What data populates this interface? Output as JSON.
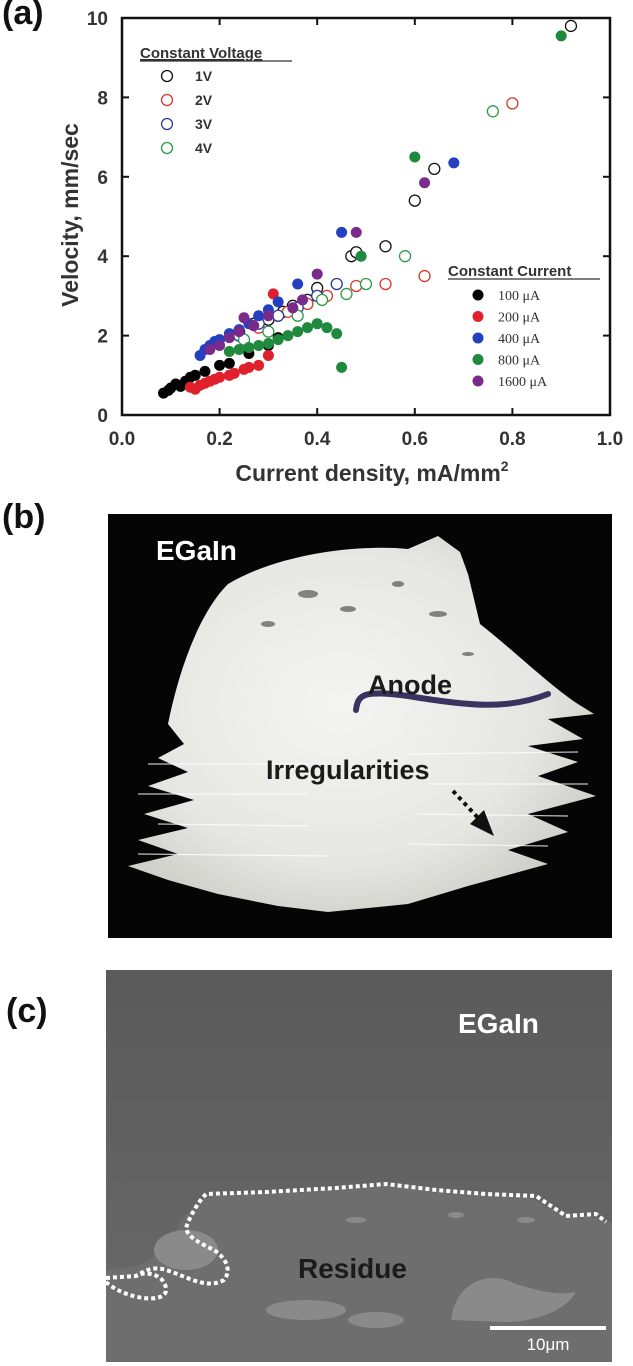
{
  "panels": {
    "a_label": "(a)",
    "b_label": "(b)",
    "c_label": "(c)"
  },
  "chart_data": {
    "type": "scatter",
    "xlabel": "Current density, mA/mm",
    "xlabel_sup": "2",
    "ylabel": "Velocity, mm/sec",
    "xlim": [
      0,
      1.0
    ],
    "ylim": [
      0,
      10
    ],
    "xticks": [
      "0.0",
      "0.2",
      "0.4",
      "0.6",
      "0.8",
      "1.0"
    ],
    "yticks": [
      "0",
      "2",
      "4",
      "6",
      "8",
      "10"
    ],
    "legend_hollow_title": "Constant Voltage",
    "legend_filled_title": "Constant Current",
    "hollow_series": [
      {
        "name": "1V",
        "color": "#111111",
        "points": [
          [
            0.24,
            2.1
          ],
          [
            0.27,
            2.3
          ],
          [
            0.3,
            2.4
          ],
          [
            0.33,
            2.6
          ],
          [
            0.35,
            2.75
          ],
          [
            0.38,
            2.9
          ],
          [
            0.4,
            3.2
          ],
          [
            0.47,
            4.0
          ],
          [
            0.48,
            4.1
          ],
          [
            0.54,
            4.25
          ],
          [
            0.6,
            5.4
          ],
          [
            0.64,
            6.2
          ],
          [
            0.92,
            9.8
          ]
        ]
      },
      {
        "name": "2V",
        "color": "#d43a2a",
        "points": [
          [
            0.28,
            2.2
          ],
          [
            0.34,
            2.6
          ],
          [
            0.38,
            2.8
          ],
          [
            0.42,
            3.0
          ],
          [
            0.48,
            3.25
          ],
          [
            0.54,
            3.3
          ],
          [
            0.62,
            3.5
          ],
          [
            0.8,
            7.85
          ]
        ]
      },
      {
        "name": "3V",
        "color": "#2a3a9a",
        "points": [
          [
            0.24,
            2.0
          ],
          [
            0.28,
            2.3
          ],
          [
            0.32,
            2.5
          ],
          [
            0.36,
            2.7
          ],
          [
            0.4,
            3.0
          ],
          [
            0.44,
            3.3
          ]
        ]
      },
      {
        "name": "4V",
        "color": "#2e9a48",
        "points": [
          [
            0.25,
            1.9
          ],
          [
            0.3,
            2.1
          ],
          [
            0.36,
            2.5
          ],
          [
            0.41,
            2.9
          ],
          [
            0.46,
            3.05
          ],
          [
            0.5,
            3.3
          ],
          [
            0.58,
            4.0
          ],
          [
            0.76,
            7.65
          ]
        ]
      }
    ],
    "filled_series": [
      {
        "name": "100 μA",
        "color": "#000000",
        "points": [
          [
            0.085,
            0.55
          ],
          [
            0.095,
            0.62
          ],
          [
            0.1,
            0.68
          ],
          [
            0.11,
            0.78
          ],
          [
            0.12,
            0.72
          ],
          [
            0.13,
            0.85
          ],
          [
            0.14,
            0.95
          ],
          [
            0.15,
            1.0
          ],
          [
            0.17,
            1.1
          ],
          [
            0.2,
            1.25
          ],
          [
            0.22,
            1.3
          ],
          [
            0.26,
            1.55
          ],
          [
            0.3,
            1.75
          ],
          [
            0.32,
            1.95
          ]
        ]
      },
      {
        "name": "200 μA",
        "color": "#e0202a",
        "points": [
          [
            0.14,
            0.7
          ],
          [
            0.15,
            0.65
          ],
          [
            0.16,
            0.75
          ],
          [
            0.17,
            0.8
          ],
          [
            0.18,
            0.85
          ],
          [
            0.19,
            0.9
          ],
          [
            0.2,
            0.95
          ],
          [
            0.22,
            1.0
          ],
          [
            0.23,
            1.05
          ],
          [
            0.25,
            1.15
          ],
          [
            0.26,
            1.2
          ],
          [
            0.28,
            1.25
          ],
          [
            0.3,
            1.5
          ],
          [
            0.31,
            3.05
          ]
        ]
      },
      {
        "name": "400 μA",
        "color": "#2440c0",
        "points": [
          [
            0.16,
            1.5
          ],
          [
            0.17,
            1.65
          ],
          [
            0.18,
            1.75
          ],
          [
            0.19,
            1.85
          ],
          [
            0.2,
            1.9
          ],
          [
            0.22,
            2.05
          ],
          [
            0.24,
            2.15
          ],
          [
            0.26,
            2.3
          ],
          [
            0.28,
            2.5
          ],
          [
            0.3,
            2.65
          ],
          [
            0.32,
            2.85
          ],
          [
            0.36,
            3.3
          ],
          [
            0.45,
            4.6
          ],
          [
            0.68,
            6.35
          ]
        ]
      },
      {
        "name": "800 μA",
        "color": "#1f8a3e",
        "points": [
          [
            0.22,
            1.6
          ],
          [
            0.24,
            1.65
          ],
          [
            0.26,
            1.7
          ],
          [
            0.28,
            1.75
          ],
          [
            0.3,
            1.8
          ],
          [
            0.32,
            1.9
          ],
          [
            0.34,
            2.0
          ],
          [
            0.36,
            2.1
          ],
          [
            0.38,
            2.2
          ],
          [
            0.4,
            2.3
          ],
          [
            0.42,
            2.2
          ],
          [
            0.44,
            2.05
          ],
          [
            0.45,
            1.2
          ],
          [
            0.49,
            4.0
          ],
          [
            0.6,
            6.5
          ],
          [
            0.9,
            9.55
          ]
        ]
      },
      {
        "name": "1600 μA",
        "color": "#7a2a8a",
        "points": [
          [
            0.18,
            1.65
          ],
          [
            0.2,
            1.75
          ],
          [
            0.22,
            1.95
          ],
          [
            0.24,
            2.1
          ],
          [
            0.25,
            2.45
          ],
          [
            0.27,
            2.25
          ],
          [
            0.3,
            2.5
          ],
          [
            0.35,
            2.7
          ],
          [
            0.37,
            2.9
          ],
          [
            0.4,
            3.55
          ],
          [
            0.48,
            4.6
          ],
          [
            0.62,
            5.85
          ]
        ]
      }
    ]
  },
  "photo_b": {
    "label_egain": "EGaIn",
    "label_anode": "Anode",
    "label_irregularities": "Irregularities"
  },
  "photo_c": {
    "label_egain": "EGaIn",
    "label_residue": "Residue",
    "scale_bar": "10μm"
  }
}
